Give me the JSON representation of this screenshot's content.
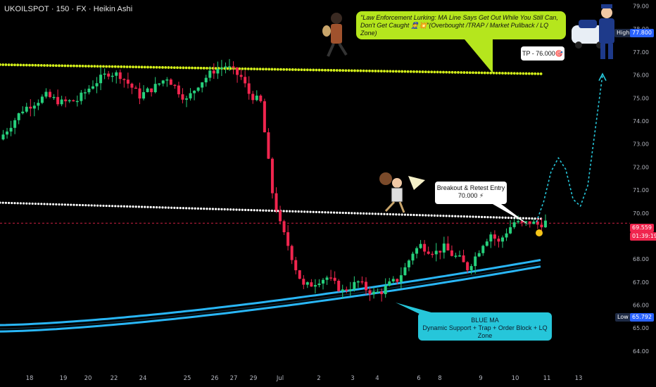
{
  "symbol_header": "UKOILSPOT · 150 · FX · Heikin Ashi",
  "callouts": {
    "top_line1": "\"Law Enforcement Lurking: MA Line Says Get Out While You Still Can,",
    "top_line2": "Don't Get Caught 👮💥\"(Overbought /TRAP / Market Pullback / LQ Zone)",
    "tp": "TP - 76.000🎯",
    "entry_line1": "Breakout & Retest Entry",
    "entry_line2": "70.000 ⚡",
    "blue_line1": "BLUE MA",
    "blue_line2": "Dynamic Support + Trap + Order Block + LQ Zone"
  },
  "price_tags": {
    "high_label": "High",
    "high_value": "77.800",
    "current_value": "69.559",
    "countdown": "01:39:19",
    "low_label": "Low",
    "low_value": "65.792"
  },
  "colors": {
    "up": "#26d07c",
    "down": "#f0254e",
    "yellow_ma": "#d4f01a",
    "white_ma": "#ffffff",
    "blue_ma": "#29b6f6",
    "current": "#f0254e"
  },
  "chart_data": {
    "type": "candlestick",
    "style": "Heikin Ashi",
    "y_axis_ticks": [
      79.0,
      78.0,
      77.0,
      76.0,
      75.0,
      74.0,
      73.0,
      72.0,
      71.0,
      70.0,
      69.0,
      68.0,
      67.0,
      66.0,
      65.0,
      64.0
    ],
    "ylim": [
      63.6,
      79.2
    ],
    "x_axis_ticks": [
      "18",
      "19",
      "20",
      "22",
      "24",
      "25",
      "26",
      "27",
      "29",
      "Jul",
      "2",
      "3",
      "4",
      "6",
      "8",
      "9",
      "10",
      "11",
      "13"
    ],
    "grid": false,
    "price_path": [
      [
        0,
        73.2
      ],
      [
        6,
        74.5
      ],
      [
        12,
        75.1
      ],
      [
        16,
        74.8
      ],
      [
        20,
        74.9
      ],
      [
        24,
        75.6
      ],
      [
        28,
        76.1
      ],
      [
        31,
        76.0
      ],
      [
        36,
        75.1
      ],
      [
        40,
        75.5
      ],
      [
        43,
        75.9
      ],
      [
        46,
        75.3
      ],
      [
        48,
        74.9
      ],
      [
        51,
        75.6
      ],
      [
        55,
        76.2
      ],
      [
        58,
        76.4
      ],
      [
        62,
        75.9
      ],
      [
        64,
        75.2
      ],
      [
        67,
        74.8
      ],
      [
        70,
        70.9
      ],
      [
        72,
        69.5
      ],
      [
        74,
        68.6
      ],
      [
        76,
        67.6
      ],
      [
        78,
        66.8
      ],
      [
        80,
        66.9
      ],
      [
        82,
        67.1
      ],
      [
        84,
        67.2
      ],
      [
        86,
        66.9
      ],
      [
        88,
        66.6
      ],
      [
        90,
        66.8
      ],
      [
        92,
        67.0
      ],
      [
        94,
        66.7
      ],
      [
        96,
        66.5
      ],
      [
        98,
        66.6
      ],
      [
        100,
        66.9
      ],
      [
        102,
        67.1
      ],
      [
        104,
        67.6
      ],
      [
        106,
        68.3
      ],
      [
        108,
        68.6
      ],
      [
        110,
        68.4
      ],
      [
        112,
        68.3
      ],
      [
        114,
        68.5
      ],
      [
        116,
        68.2
      ],
      [
        118,
        68.0
      ],
      [
        120,
        67.6
      ],
      [
        122,
        68.1
      ],
      [
        124,
        68.7
      ],
      [
        126,
        69.1
      ],
      [
        128,
        68.7
      ],
      [
        130,
        69.2
      ],
      [
        132,
        69.6
      ],
      [
        134,
        69.5
      ],
      [
        136,
        69.6
      ],
      [
        138,
        69.5
      ],
      [
        140,
        69.6
      ]
    ],
    "moving_averages": [
      {
        "name": "yellow",
        "from": 76.45,
        "to": 76.05
      },
      {
        "name": "white",
        "from": 70.45,
        "to": 69.75
      },
      {
        "name": "blue",
        "from": 64.85,
        "to": 67.7
      }
    ],
    "projection_path": [
      69.6,
      70.5,
      71.8,
      72.4,
      71.9,
      70.6,
      70.3,
      71.2,
      73.6,
      76.0
    ],
    "levels": {
      "tp": 76.0,
      "entry": 70.0,
      "current": 69.559,
      "high": 77.8,
      "low": 65.792
    }
  }
}
